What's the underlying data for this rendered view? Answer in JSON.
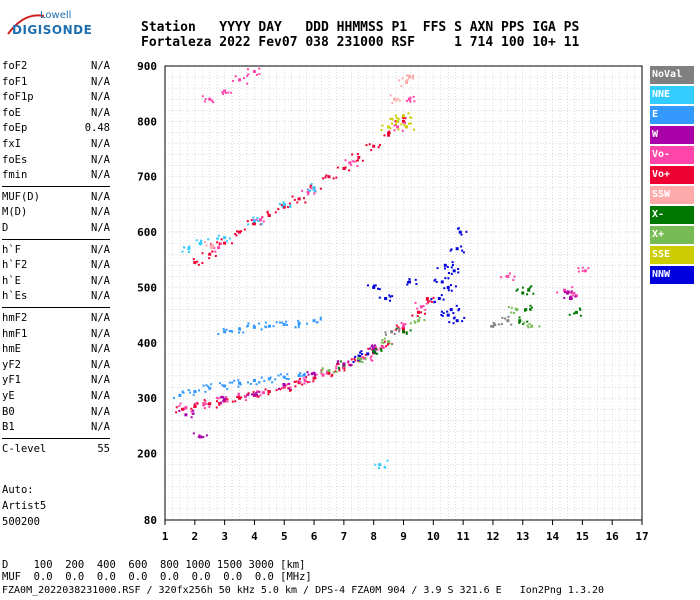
{
  "logo": {
    "line1": "Lowell",
    "line2": "DIGISONDE"
  },
  "header": {
    "labels": "Station   YYYY DAY   DDD HHMMSS P1  FFS S AXN PPS IGA PS",
    "values": "Fortaleza 2022 Fev07 038 231000 RSF     1 714 100 10+ 11"
  },
  "params": [
    {
      "label": "foF2",
      "value": "N/A"
    },
    {
      "label": "foF1",
      "value": "N/A"
    },
    {
      "label": "foF1p",
      "value": "N/A"
    },
    {
      "label": "foE",
      "value": "N/A"
    },
    {
      "label": "foEp",
      "value": "0.48"
    },
    {
      "label": "fxI",
      "value": "N/A"
    },
    {
      "label": "foEs",
      "value": "N/A"
    },
    {
      "label": "fmin",
      "value": "N/A"
    },
    {
      "label": "MUF(D)",
      "value": "N/A"
    },
    {
      "label": "M(D)",
      "value": "N/A"
    },
    {
      "label": "D",
      "value": "N/A"
    },
    {
      "label": "h`F",
      "value": "N/A"
    },
    {
      "label": "h`F2",
      "value": "N/A"
    },
    {
      "label": "h`E",
      "value": "N/A"
    },
    {
      "label": "h`Es",
      "value": "N/A"
    },
    {
      "label": "hmF2",
      "value": "N/A"
    },
    {
      "label": "hmF1",
      "value": "N/A"
    },
    {
      "label": "hmE",
      "value": "N/A"
    },
    {
      "label": "yF2",
      "value": "N/A"
    },
    {
      "label": "yF1",
      "value": "N/A"
    },
    {
      "label": "yE",
      "value": "N/A"
    },
    {
      "label": "B0",
      "value": "N/A"
    },
    {
      "label": "B1",
      "value": "N/A"
    },
    {
      "label": "C-level",
      "value": "55"
    }
  ],
  "auto": {
    "line1": "Auto:",
    "line2": "Artist5",
    "line3": "500200"
  },
  "legend": [
    {
      "label": "NoVal",
      "color": "#808080"
    },
    {
      "label": "NNE",
      "color": "#33ccff"
    },
    {
      "label": "E",
      "color": "#3399ff"
    },
    {
      "label": "W",
      "color": "#aa00aa"
    },
    {
      "label": "Vo-",
      "color": "#ff44aa"
    },
    {
      "label": "Vo+",
      "color": "#ee0033"
    },
    {
      "label": "SSW",
      "color": "#ffaaaa"
    },
    {
      "label": "X-",
      "color": "#007700"
    },
    {
      "label": "X+",
      "color": "#77bb55"
    },
    {
      "label": "SSE",
      "color": "#cccc00"
    },
    {
      "label": "NNW",
      "color": "#0000dd"
    }
  ],
  "footer": {
    "d_line": "D    100  200  400  600  800 1000 1500 3000 [km]",
    "muf_line": "MUF  0.0  0.0  0.0  0.0  0.0  0.0  0.0  0.0 [MHz]",
    "file_line": "FZA0M_2022038231000.RSF / 320fx256h 50 kHz 5.0 km / DPS-4 FZA0M 904 / 3.9 S 321.6 E   Ion2Png 1.3.20"
  },
  "chart_data": {
    "type": "scatter",
    "xlim": [
      1,
      17
    ],
    "ylim": [
      80,
      900
    ],
    "x_ticks": [
      1,
      2,
      3,
      4,
      5,
      6,
      7,
      8,
      9,
      10,
      11,
      12,
      13,
      14,
      15,
      16,
      17
    ],
    "y_ticks": [
      80,
      200,
      300,
      400,
      500,
      600,
      700,
      800,
      900
    ],
    "xlabel": "",
    "ylabel": "",
    "grid": true,
    "series": [
      {
        "name": "Vo+",
        "color": "#ee0033",
        "points": [
          [
            1.6,
            280
          ],
          [
            2,
            285
          ],
          [
            2.5,
            290
          ],
          [
            3,
            295
          ],
          [
            3.5,
            300
          ],
          [
            4,
            305
          ],
          [
            4.5,
            312
          ],
          [
            5,
            320
          ],
          [
            5.5,
            328
          ],
          [
            6,
            336
          ],
          [
            6.5,
            345
          ],
          [
            7,
            355
          ],
          [
            7.5,
            368
          ],
          [
            8,
            382
          ],
          [
            8.5,
            400
          ],
          [
            9,
            425
          ],
          [
            9.5,
            455
          ],
          [
            9.8,
            480
          ],
          [
            2,
            545
          ],
          [
            2.5,
            560
          ],
          [
            3,
            580
          ],
          [
            3.5,
            600
          ],
          [
            4,
            615
          ],
          [
            4.5,
            630
          ],
          [
            5,
            645
          ],
          [
            5.5,
            660
          ],
          [
            6,
            680
          ],
          [
            6.5,
            700
          ],
          [
            7,
            715
          ],
          [
            7.5,
            735
          ],
          [
            8,
            755
          ],
          [
            8.5,
            775
          ],
          [
            9,
            800
          ]
        ]
      },
      {
        "name": "Vo-",
        "color": "#ff44aa",
        "points": [
          [
            1.7,
            283
          ],
          [
            2.3,
            288
          ],
          [
            3,
            297
          ],
          [
            3.7,
            303
          ],
          [
            4.3,
            310
          ],
          [
            5,
            322
          ],
          [
            5.7,
            332
          ],
          [
            6.3,
            342
          ],
          [
            7,
            358
          ],
          [
            7.7,
            372
          ],
          [
            8.3,
            392
          ],
          [
            9,
            430
          ],
          [
            9.6,
            465
          ],
          [
            2.8,
            572
          ],
          [
            4.2,
            622
          ],
          [
            5.8,
            672
          ],
          [
            7.2,
            725
          ],
          [
            8.8,
            790
          ],
          [
            9.2,
            840
          ],
          [
            14.4,
            495
          ],
          [
            14.8,
            485
          ],
          [
            15.1,
            530
          ],
          [
            12.5,
            520
          ],
          [
            2.5,
            840
          ],
          [
            3,
            855
          ],
          [
            3.5,
            875
          ],
          [
            4,
            890
          ]
        ]
      },
      {
        "name": "E",
        "color": "#3399ff",
        "points": [
          [
            1.5,
            305
          ],
          [
            2,
            312
          ],
          [
            2.5,
            318
          ],
          [
            3,
            322
          ],
          [
            3.5,
            327
          ],
          [
            4,
            332
          ],
          [
            4.5,
            335
          ],
          [
            5,
            338
          ],
          [
            5.5,
            341
          ],
          [
            3,
            420
          ],
          [
            3.5,
            425
          ],
          [
            4,
            428
          ],
          [
            4.5,
            430
          ],
          [
            5,
            433
          ],
          [
            5.5,
            435
          ],
          [
            6,
            440
          ]
        ]
      },
      {
        "name": "NNE",
        "color": "#33ccff",
        "points": [
          [
            1.8,
            570
          ],
          [
            2.2,
            580
          ],
          [
            3,
            590
          ],
          [
            4,
            620
          ],
          [
            5,
            650
          ],
          [
            6,
            680
          ],
          [
            8.2,
            180
          ]
        ]
      },
      {
        "name": "NNW",
        "color": "#0000dd",
        "points": [
          [
            10.2,
            480
          ],
          [
            10.3,
            510
          ],
          [
            10.5,
            500
          ],
          [
            10.6,
            460
          ],
          [
            10.7,
            530
          ],
          [
            10.8,
            570
          ],
          [
            10.9,
            600
          ],
          [
            10.5,
            450
          ],
          [
            10.8,
            440
          ],
          [
            10.4,
            540
          ],
          [
            8.0,
            500
          ],
          [
            8.4,
            480
          ],
          [
            9.2,
            510
          ],
          [
            7.5,
            370
          ],
          [
            7.8,
            380
          ]
        ]
      },
      {
        "name": "X-",
        "color": "#007700",
        "points": [
          [
            7,
            360
          ],
          [
            8,
            385
          ],
          [
            9,
            420
          ],
          [
            13.0,
            490
          ],
          [
            13.2,
            495
          ],
          [
            12.9,
            440
          ],
          [
            13.1,
            460
          ],
          [
            14.8,
            455
          ]
        ]
      },
      {
        "name": "X+",
        "color": "#77bb55",
        "points": [
          [
            6.5,
            350
          ],
          [
            7.5,
            372
          ],
          [
            8.5,
            402
          ],
          [
            9.5,
            440
          ],
          [
            12.8,
            460
          ],
          [
            13.3,
            430
          ]
        ]
      },
      {
        "name": "SSE",
        "color": "#cccc00",
        "points": [
          [
            8.5,
            790
          ],
          [
            8.8,
            800
          ],
          [
            9,
            810
          ],
          [
            9.1,
            790
          ]
        ]
      },
      {
        "name": "SSW",
        "color": "#ffaaaa",
        "points": [
          [
            9.1,
            870
          ],
          [
            9.2,
            880
          ],
          [
            8.7,
            840
          ],
          [
            2.6,
            575
          ]
        ]
      },
      {
        "name": "W",
        "color": "#aa00aa",
        "points": [
          [
            1.7,
            270
          ],
          [
            2.2,
            230
          ],
          [
            3,
            298
          ],
          [
            4,
            306
          ],
          [
            5,
            324
          ],
          [
            6,
            345
          ],
          [
            7,
            362
          ],
          [
            8,
            390
          ],
          [
            14.5,
            490
          ],
          [
            14.6,
            480
          ]
        ]
      },
      {
        "name": "NoVal",
        "color": "#808080",
        "points": [
          [
            8.6,
            420
          ],
          [
            12,
            430
          ],
          [
            12.5,
            440
          ]
        ]
      }
    ]
  }
}
